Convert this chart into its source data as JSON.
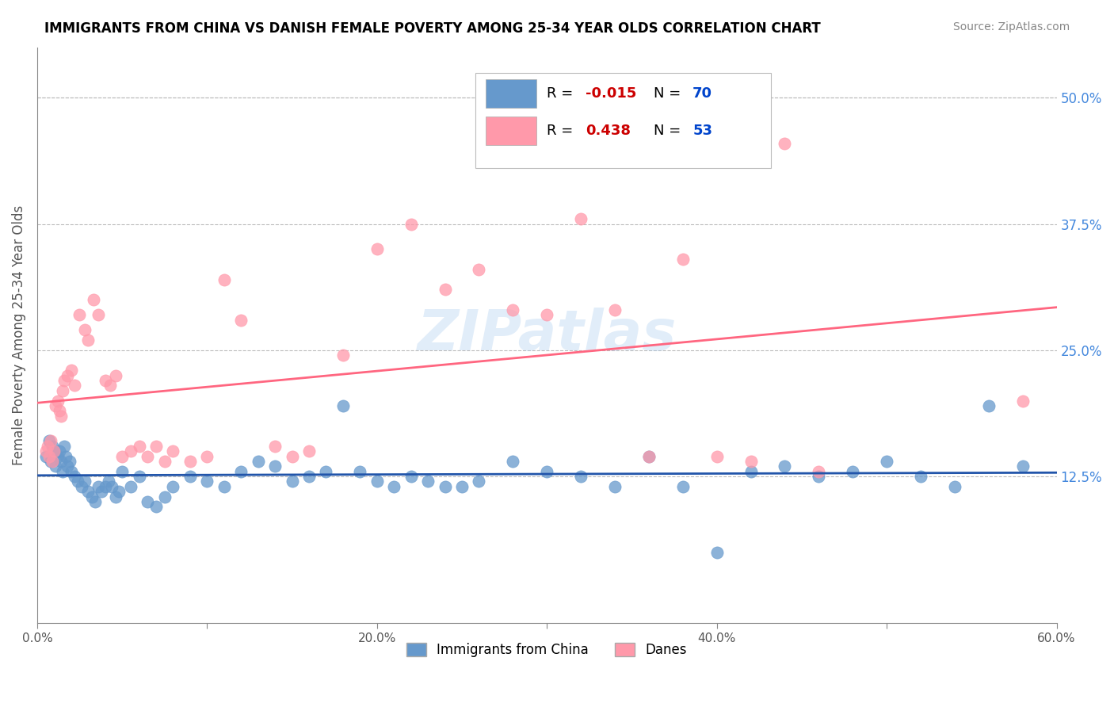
{
  "title": "IMMIGRANTS FROM CHINA VS DANISH FEMALE POVERTY AMONG 25-34 YEAR OLDS CORRELATION CHART",
  "source": "Source: ZipAtlas.com",
  "xlabel": "",
  "ylabel": "Female Poverty Among 25-34 Year Olds",
  "xlim": [
    0.0,
    0.6
  ],
  "ylim": [
    -0.02,
    0.55
  ],
  "xticks": [
    0.0,
    0.1,
    0.2,
    0.3,
    0.4,
    0.5,
    0.6
  ],
  "xticklabels": [
    "0.0%",
    "",
    "20.0%",
    "",
    "40.0%",
    "",
    "60.0%"
  ],
  "yticks": [
    0.125,
    0.25,
    0.375,
    0.5
  ],
  "yticklabels": [
    "12.5%",
    "25.0%",
    "37.5%",
    "50.0%"
  ],
  "blue_R": "-0.015",
  "blue_N": "70",
  "pink_R": "0.438",
  "pink_N": "53",
  "blue_color": "#6699CC",
  "pink_color": "#FF99AA",
  "blue_line_color": "#2255AA",
  "pink_line_color": "#FF6680",
  "watermark": "ZIPatlas",
  "blue_scatter_x": [
    0.005,
    0.007,
    0.008,
    0.009,
    0.01,
    0.011,
    0.012,
    0.013,
    0.014,
    0.015,
    0.016,
    0.017,
    0.018,
    0.019,
    0.02,
    0.022,
    0.024,
    0.026,
    0.028,
    0.03,
    0.032,
    0.034,
    0.036,
    0.038,
    0.04,
    0.042,
    0.044,
    0.046,
    0.048,
    0.05,
    0.055,
    0.06,
    0.065,
    0.07,
    0.075,
    0.08,
    0.09,
    0.1,
    0.11,
    0.12,
    0.13,
    0.14,
    0.15,
    0.16,
    0.17,
    0.18,
    0.19,
    0.2,
    0.21,
    0.22,
    0.23,
    0.24,
    0.25,
    0.26,
    0.28,
    0.3,
    0.32,
    0.34,
    0.36,
    0.38,
    0.4,
    0.42,
    0.44,
    0.46,
    0.48,
    0.5,
    0.52,
    0.54,
    0.56,
    0.58
  ],
  "blue_scatter_y": [
    0.145,
    0.16,
    0.14,
    0.155,
    0.15,
    0.135,
    0.145,
    0.15,
    0.14,
    0.13,
    0.155,
    0.145,
    0.135,
    0.14,
    0.13,
    0.125,
    0.12,
    0.115,
    0.12,
    0.11,
    0.105,
    0.1,
    0.115,
    0.11,
    0.115,
    0.12,
    0.115,
    0.105,
    0.11,
    0.13,
    0.115,
    0.125,
    0.1,
    0.095,
    0.105,
    0.115,
    0.125,
    0.12,
    0.115,
    0.13,
    0.14,
    0.135,
    0.12,
    0.125,
    0.13,
    0.195,
    0.13,
    0.12,
    0.115,
    0.125,
    0.12,
    0.115,
    0.115,
    0.12,
    0.14,
    0.13,
    0.125,
    0.115,
    0.145,
    0.115,
    0.05,
    0.13,
    0.135,
    0.125,
    0.13,
    0.14,
    0.125,
    0.115,
    0.195,
    0.135
  ],
  "pink_scatter_x": [
    0.005,
    0.006,
    0.007,
    0.008,
    0.009,
    0.01,
    0.011,
    0.012,
    0.013,
    0.014,
    0.015,
    0.016,
    0.018,
    0.02,
    0.022,
    0.025,
    0.028,
    0.03,
    0.033,
    0.036,
    0.04,
    0.043,
    0.046,
    0.05,
    0.055,
    0.06,
    0.065,
    0.07,
    0.075,
    0.08,
    0.09,
    0.1,
    0.11,
    0.12,
    0.14,
    0.15,
    0.16,
    0.18,
    0.2,
    0.22,
    0.24,
    0.26,
    0.28,
    0.3,
    0.32,
    0.34,
    0.36,
    0.38,
    0.4,
    0.42,
    0.44,
    0.46,
    0.58
  ],
  "pink_scatter_y": [
    0.15,
    0.155,
    0.145,
    0.16,
    0.14,
    0.15,
    0.195,
    0.2,
    0.19,
    0.185,
    0.21,
    0.22,
    0.225,
    0.23,
    0.215,
    0.285,
    0.27,
    0.26,
    0.3,
    0.285,
    0.22,
    0.215,
    0.225,
    0.145,
    0.15,
    0.155,
    0.145,
    0.155,
    0.14,
    0.15,
    0.14,
    0.145,
    0.32,
    0.28,
    0.155,
    0.145,
    0.15,
    0.245,
    0.35,
    0.375,
    0.31,
    0.33,
    0.29,
    0.285,
    0.38,
    0.29,
    0.145,
    0.34,
    0.145,
    0.14,
    0.455,
    0.13,
    0.2
  ]
}
